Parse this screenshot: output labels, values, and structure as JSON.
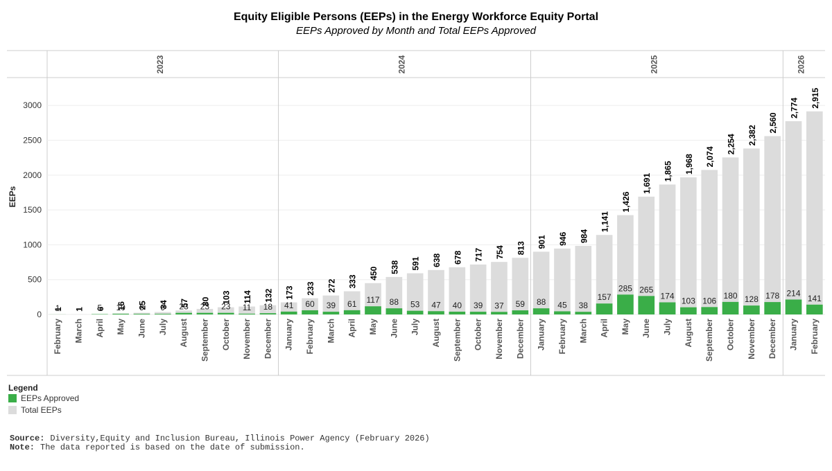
{
  "chart_data": {
    "type": "bar",
    "title": "Equity Eligible Persons (EEPs) in the Energy Workforce Equity Portal",
    "subtitle": "EEPs Approved by Month and Total EEPs Approved",
    "y_label": "EEPs",
    "legend_title": "Legend",
    "groups": [
      {
        "name": "2023",
        "categories": [
          "February",
          "March",
          "April",
          "May",
          "June",
          "July",
          "August",
          "September",
          "October",
          "November",
          "December"
        ]
      },
      {
        "name": "2024",
        "categories": [
          "January",
          "February",
          "March",
          "April",
          "May",
          "June",
          "July",
          "August",
          "September",
          "October",
          "November",
          "December"
        ]
      },
      {
        "name": "2025",
        "categories": [
          "January",
          "February",
          "March",
          "April",
          "May",
          "June",
          "July",
          "August",
          "September",
          "October",
          "November",
          "December"
        ]
      },
      {
        "name": "2026",
        "categories": [
          "January",
          "February"
        ]
      }
    ],
    "series": [
      {
        "name": "EEPs Approved",
        "color": "#3aae48",
        "values": [
          1,
          null,
          5,
          10,
          9,
          9,
          23,
          23,
          23,
          11,
          18,
          41,
          60,
          39,
          61,
          117,
          88,
          53,
          47,
          40,
          39,
          37,
          59,
          88,
          45,
          38,
          157,
          285,
          265,
          174,
          103,
          106,
          180,
          128,
          178,
          214,
          141
        ]
      },
      {
        "name": "Total EEPs",
        "color": "#dcdcdc",
        "values": [
          1,
          1,
          6,
          16,
          25,
          34,
          57,
          80,
          103,
          114,
          132,
          173,
          233,
          272,
          333,
          450,
          538,
          591,
          638,
          678,
          717,
          754,
          813,
          901,
          946,
          984,
          1141,
          1426,
          1691,
          1865,
          1968,
          2074,
          2254,
          2382,
          2560,
          2774,
          2915
        ],
        "value_labels": [
          "1",
          "1",
          "6",
          "16",
          "25",
          "34",
          "57",
          "80",
          "103",
          "114",
          "132",
          "173",
          "233",
          "272",
          "333",
          "450",
          "538",
          "591",
          "638",
          "678",
          "717",
          "754",
          "813",
          "901",
          "946",
          "984",
          "1,141",
          "1,426",
          "1,691",
          "1,865",
          "1,968",
          "2,074",
          "2,254",
          "2,382",
          "2,560",
          "2,774",
          "2,915"
        ]
      }
    ],
    "ylim": [
      0,
      3400
    ],
    "yticks": [
      0,
      500,
      1000,
      1500,
      2000,
      2500,
      3000
    ],
    "grid": true,
    "notes": [
      {
        "label": "Source:",
        "text": "Diversity,Equity and Inclusion Bureau, Illinois Power Agency (February 2026)"
      },
      {
        "label": "Note:",
        "text": "The data reported is based on the date of submission."
      }
    ]
  }
}
